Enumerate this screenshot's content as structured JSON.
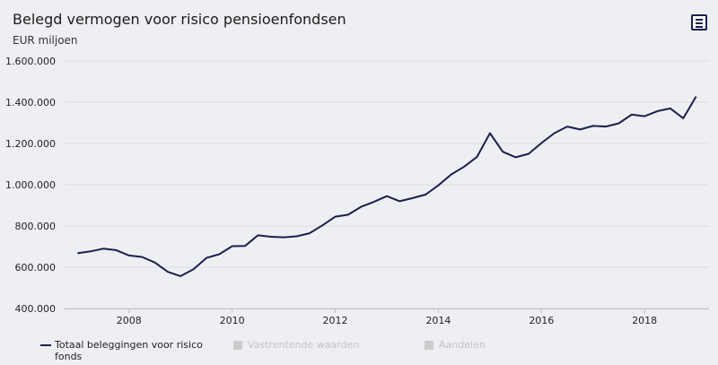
{
  "header": {
    "title": "Belegd vermogen voor risico pensioenfondsen",
    "subtitle": "EUR miljoen",
    "menu_icon": "hamburger-menu-icon"
  },
  "legend": {
    "items": [
      {
        "label": "Totaal beleggingen voor risico fonds",
        "active": true,
        "color": "#1a1f4d"
      },
      {
        "label": "Vastrentende waarden",
        "active": false,
        "color": "#cccccc"
      },
      {
        "label": "Aandelen",
        "active": false,
        "color": "#cccccc"
      }
    ]
  },
  "chart_data": {
    "type": "line",
    "title": "Belegd vermogen voor risico pensioenfondsen",
    "subtitle": "EUR miljoen",
    "xlabel": "",
    "ylabel": "",
    "xlim": [
      2006.75,
      2019.25
    ],
    "ylim": [
      400000,
      1600000
    ],
    "x_ticks": [
      2008,
      2010,
      2012,
      2014,
      2016,
      2018
    ],
    "x_tick_labels": [
      "2008",
      "2010",
      "2012",
      "2014",
      "2016",
      "2018"
    ],
    "y_ticks": [
      400000,
      600000,
      800000,
      1000000,
      1200000,
      1400000,
      1600000
    ],
    "y_tick_labels": [
      "400.000",
      "600.000",
      "800.000",
      "1.000.000",
      "1.200.000",
      "1.400.000",
      "1.600.000"
    ],
    "grid": true,
    "legend_position": "bottom-left",
    "series": [
      {
        "name": "Totaal beleggingen voor risico fonds",
        "color": "#1a1f4d",
        "points": [
          [
            2007.0,
            668000
          ],
          [
            2007.25,
            677000
          ],
          [
            2007.5,
            690000
          ],
          [
            2007.75,
            683000
          ],
          [
            2008.0,
            657000
          ],
          [
            2008.25,
            650000
          ],
          [
            2008.5,
            623000
          ],
          [
            2008.75,
            578000
          ],
          [
            2009.0,
            557000
          ],
          [
            2009.25,
            590000
          ],
          [
            2009.5,
            645000
          ],
          [
            2009.75,
            663000
          ],
          [
            2010.0,
            702000
          ],
          [
            2010.25,
            703000
          ],
          [
            2010.5,
            755000
          ],
          [
            2010.75,
            748000
          ],
          [
            2011.0,
            745000
          ],
          [
            2011.25,
            750000
          ],
          [
            2011.5,
            765000
          ],
          [
            2011.75,
            803000
          ],
          [
            2012.0,
            845000
          ],
          [
            2012.25,
            855000
          ],
          [
            2012.5,
            893000
          ],
          [
            2012.75,
            917000
          ],
          [
            2013.0,
            945000
          ],
          [
            2013.25,
            920000
          ],
          [
            2013.5,
            935000
          ],
          [
            2013.75,
            952000
          ],
          [
            2014.0,
            997000
          ],
          [
            2014.25,
            1050000
          ],
          [
            2014.5,
            1088000
          ],
          [
            2014.75,
            1135000
          ],
          [
            2015.0,
            1250000
          ],
          [
            2015.25,
            1160000
          ],
          [
            2015.5,
            1133000
          ],
          [
            2015.75,
            1150000
          ],
          [
            2016.0,
            1202000
          ],
          [
            2016.25,
            1250000
          ],
          [
            2016.5,
            1282000
          ],
          [
            2016.75,
            1268000
          ],
          [
            2017.0,
            1285000
          ],
          [
            2017.25,
            1282000
          ],
          [
            2017.5,
            1298000
          ],
          [
            2017.75,
            1340000
          ],
          [
            2018.0,
            1332000
          ],
          [
            2018.25,
            1357000
          ],
          [
            2018.5,
            1370000
          ],
          [
            2018.75,
            1322000
          ],
          [
            2019.0,
            1428000
          ]
        ]
      }
    ]
  }
}
